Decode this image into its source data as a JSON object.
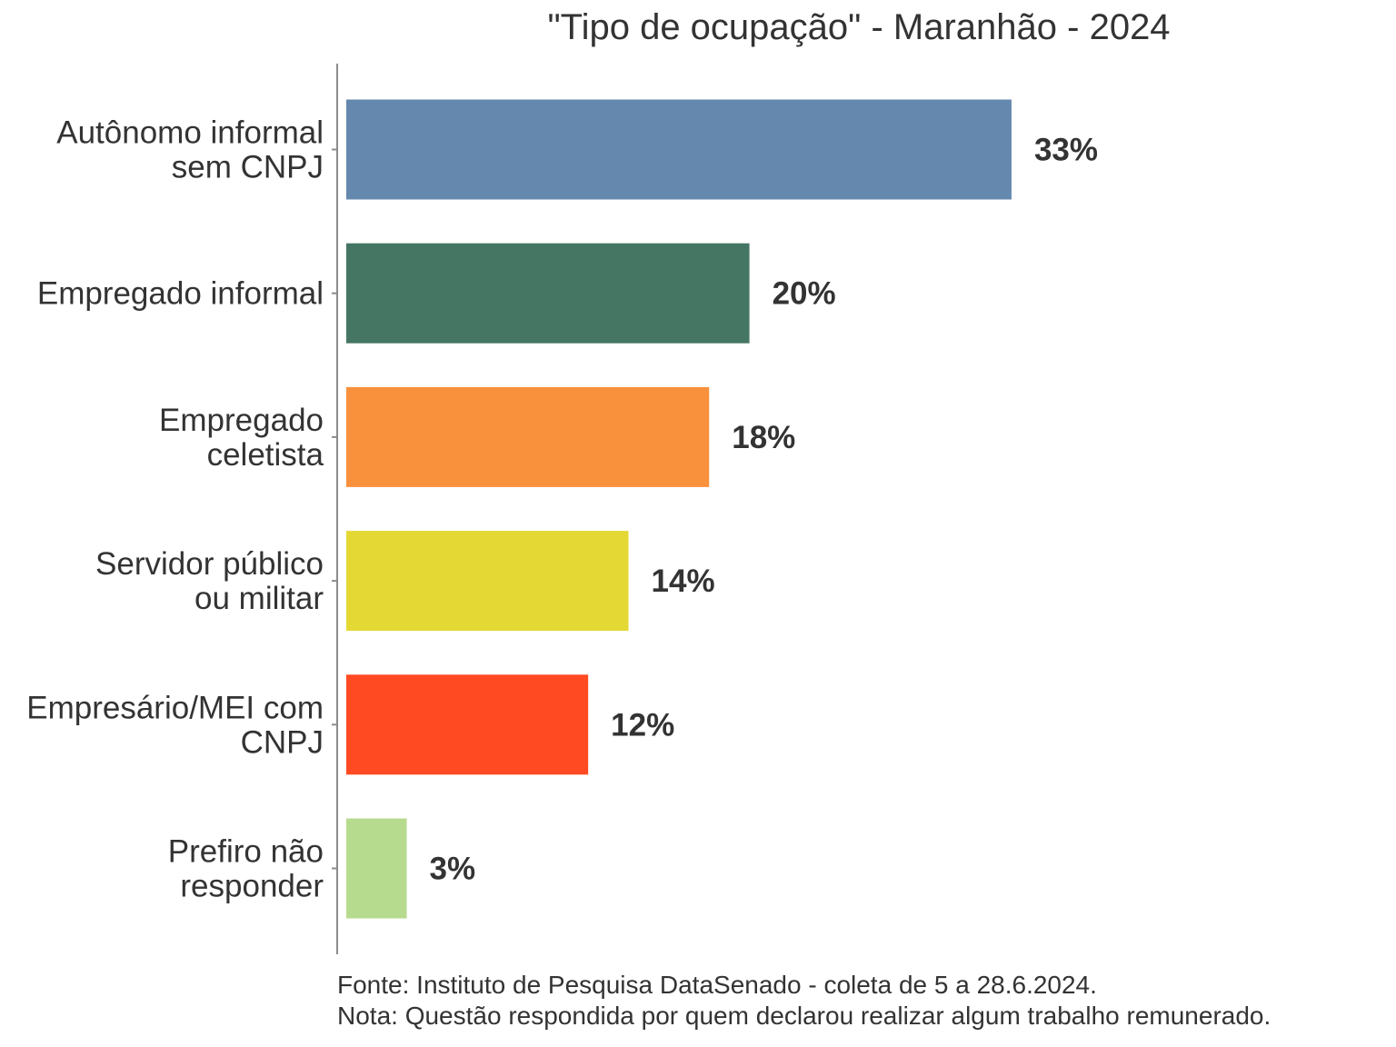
{
  "chart_data": {
    "type": "bar",
    "orientation": "horizontal",
    "title": "\"Tipo de ocupação\" - Maranhão - 2024",
    "categories": [
      [
        "Autônomo informal",
        "sem CNPJ"
      ],
      [
        "Empregado informal"
      ],
      [
        "Empregado",
        "celetista"
      ],
      [
        "Servidor público",
        "ou militar"
      ],
      [
        "Empresário/MEI com",
        "CNPJ"
      ],
      [
        "Prefiro não",
        "responder"
      ]
    ],
    "values": [
      33,
      20,
      18,
      14,
      12,
      3
    ],
    "value_labels": [
      "33%",
      "20%",
      "18%",
      "14%",
      "12%",
      "3%"
    ],
    "colors": [
      "#6588AF",
      "#457664",
      "#F9913C",
      "#E4D934",
      "#FF4A22",
      "#B7DB8E"
    ],
    "xlim": [
      0,
      45
    ],
    "xlabel": "",
    "ylabel": "",
    "grid": false,
    "legend": "none"
  },
  "footer": {
    "source": "Fonte: Instituto de Pesquisa DataSenado - coleta de 5 a 28.6.2024.",
    "note": "Nota: Questão respondida por quem declarou realizar algum trabalho remunerado."
  }
}
